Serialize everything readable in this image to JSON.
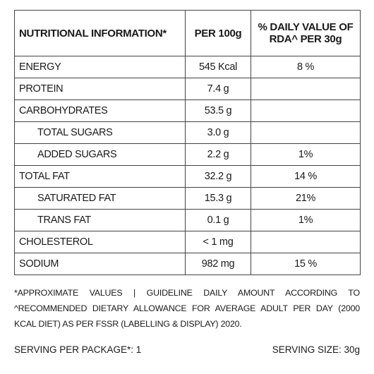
{
  "table": {
    "header": [
      "NUTRITIONAL INFORMATION*",
      "PER 100g",
      [
        "% DAILY VALUE OF",
        "RDA^ PER 30g"
      ]
    ],
    "rows": [
      {
        "label": "ENERGY",
        "per100g": "545 Kcal",
        "rda": "8 %"
      },
      {
        "label": "PROTEIN",
        "per100g": "7.4 g"
      },
      {
        "label": "CARBOHYDRATES",
        "per100g": "53.5 g",
        "sub": [
          {
            "label": "TOTAL SUGARS",
            "per100g": "3.0 g"
          },
          {
            "label": "ADDED SUGARS",
            "per100g": "2.2 g",
            "rda": "1%"
          }
        ]
      },
      {
        "label": "TOTAL FAT",
        "per100g": "32.2 g",
        "rda": "14 %",
        "sub": [
          {
            "label": "SATURATED FAT",
            "per100g": "15.3 g",
            "rda": "21%"
          },
          {
            "label": "TRANS FAT",
            "per100g": "0.1 g",
            "rda": "1%"
          }
        ]
      },
      {
        "label": "CHOLESTEROL",
        "per100g": "< 1 mg"
      },
      {
        "label": "SODIUM",
        "per100g": "982 mg",
        "rda": "15 %"
      }
    ]
  },
  "footnote": [
    "*APPROXIMATE VALUES | GUIDELINE DAILY AMOUNT ACCORDING TO",
    "^RECOMMENDED DIETARY ALLOWANCE FOR AVERAGE ADULT PER DAY (2000",
    "KCAL DIET) AS PER FSSR (LABELLING & DISPLAY) 2020."
  ],
  "serving": {
    "per_package": "SERVING PER PACKAGE*: 1",
    "size": "SERVING SIZE: 30g"
  }
}
